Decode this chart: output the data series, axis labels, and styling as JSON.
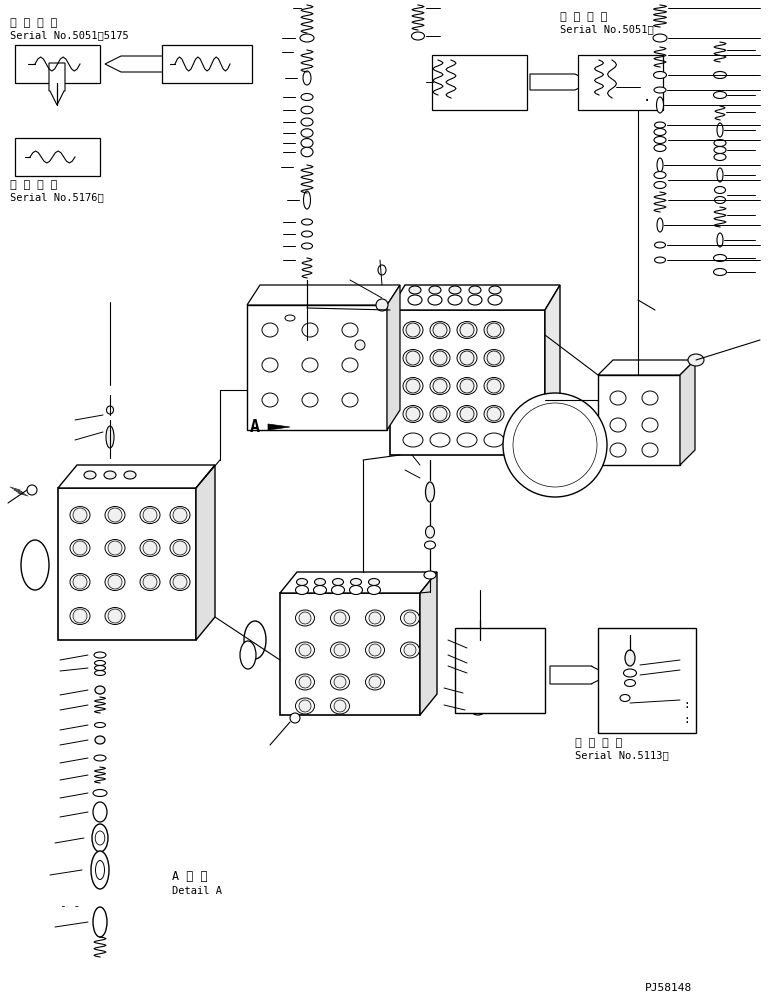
{
  "background_color": "#ffffff",
  "line_color": "#000000",
  "fig_width": 7.71,
  "fig_height": 10.0,
  "dpi": 100,
  "texts": {
    "top_left_1": "適用号機",
    "top_left_2": "Serial No.5051～5175",
    "mid_left_1": "適用号機",
    "mid_left_2": "Serial No.5176～",
    "top_right_1": "適用号機",
    "top_right_2": "Serial No.5051～",
    "bot_right_1": "適用号機",
    "bot_right_2": "Serial No.5113～",
    "detail_a_1": "A 詳細",
    "detail_a_2": "Detail A",
    "part_num": "PJ58148",
    "label_a": "A"
  }
}
